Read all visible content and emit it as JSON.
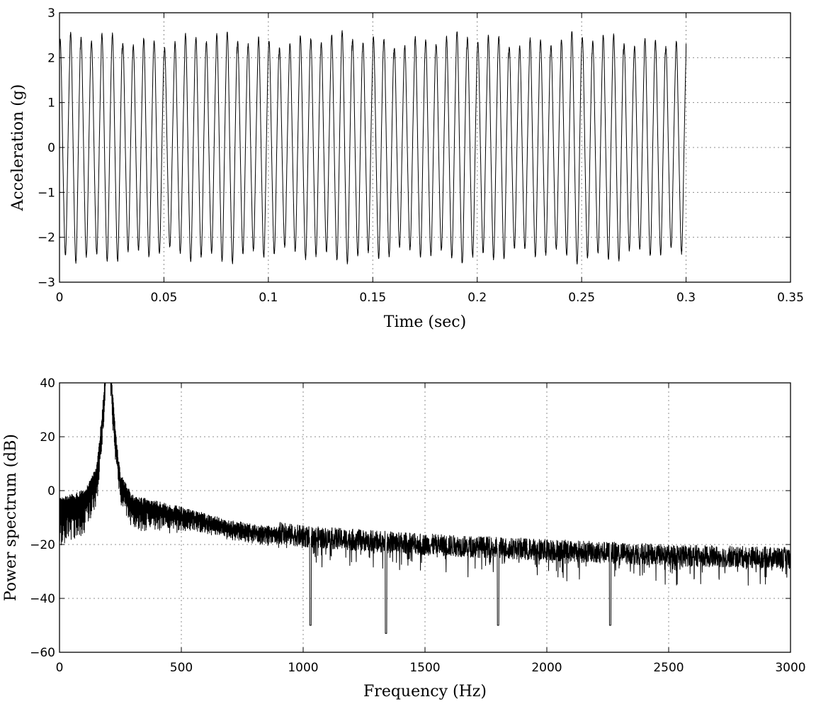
{
  "chart_data": [
    {
      "type": "line",
      "title": "",
      "xlabel": "Time (sec)",
      "ylabel": "Acceleration (g)",
      "xlim": [
        0,
        0.35
      ],
      "ylim": [
        -3,
        3
      ],
      "xticks": [
        0,
        0.05,
        0.1,
        0.15,
        0.2,
        0.25,
        0.3,
        0.35
      ],
      "xtick_labels": [
        "0",
        "0.05",
        "0.1",
        "0.15",
        "0.2",
        "0.25",
        "0.3",
        "0.35"
      ],
      "yticks": [
        -3,
        -2,
        -1,
        0,
        1,
        2,
        3
      ],
      "ytick_labels": [
        "−3",
        "−2",
        "−1",
        "0",
        "1",
        "2",
        "3"
      ],
      "grid": true,
      "series": [
        {
          "description": "sinusoidal oscillation, ~200 Hz, amplitude ~2.3 g, from 0 to 0.3 s",
          "x_range": [
            0,
            0.3
          ],
          "frequency_hz": 200,
          "amplitude_g": 2.3,
          "peak_range_g": [
            2.2,
            2.6
          ],
          "trough_range_g": [
            -2.6,
            -2.2
          ]
        }
      ]
    },
    {
      "type": "line",
      "title": "",
      "xlabel": "Frequency (Hz)",
      "ylabel": "Power spectrum (dB)",
      "xlim": [
        0,
        3000
      ],
      "ylim": [
        -60,
        40
      ],
      "xticks": [
        0,
        500,
        1000,
        1500,
        2000,
        2500,
        3000
      ],
      "xtick_labels": [
        "0",
        "500",
        "1000",
        "1500",
        "2000",
        "2500",
        "3000"
      ],
      "yticks": [
        -60,
        -40,
        -20,
        0,
        20,
        40
      ],
      "ytick_labels": [
        "−60",
        "−40",
        "−20",
        "0",
        "20",
        "40"
      ],
      "grid": true,
      "series": [
        {
          "description": "power spectrum with sharp peak at ~200 Hz, decaying to a noisy floor around −25 dB",
          "peak": {
            "x": 200,
            "y": 40
          },
          "envelope": [
            {
              "x": 0,
              "y": -5
            },
            {
              "x": 100,
              "y": -2
            },
            {
              "x": 150,
              "y": 5
            },
            {
              "x": 200,
              "y": 40
            },
            {
              "x": 250,
              "y": 3
            },
            {
              "x": 300,
              "y": -4
            },
            {
              "x": 500,
              "y": -8
            },
            {
              "x": 700,
              "y": -13
            },
            {
              "x": 1000,
              "y": -17
            },
            {
              "x": 1500,
              "y": -20
            },
            {
              "x": 2000,
              "y": -22
            },
            {
              "x": 2500,
              "y": -24
            },
            {
              "x": 3000,
              "y": -25
            }
          ],
          "notable_dips": [
            {
              "x": 1030,
              "y": -50
            },
            {
              "x": 1340,
              "y": -53
            },
            {
              "x": 1800,
              "y": -50
            },
            {
              "x": 2260,
              "y": -50
            }
          ]
        }
      ]
    }
  ]
}
